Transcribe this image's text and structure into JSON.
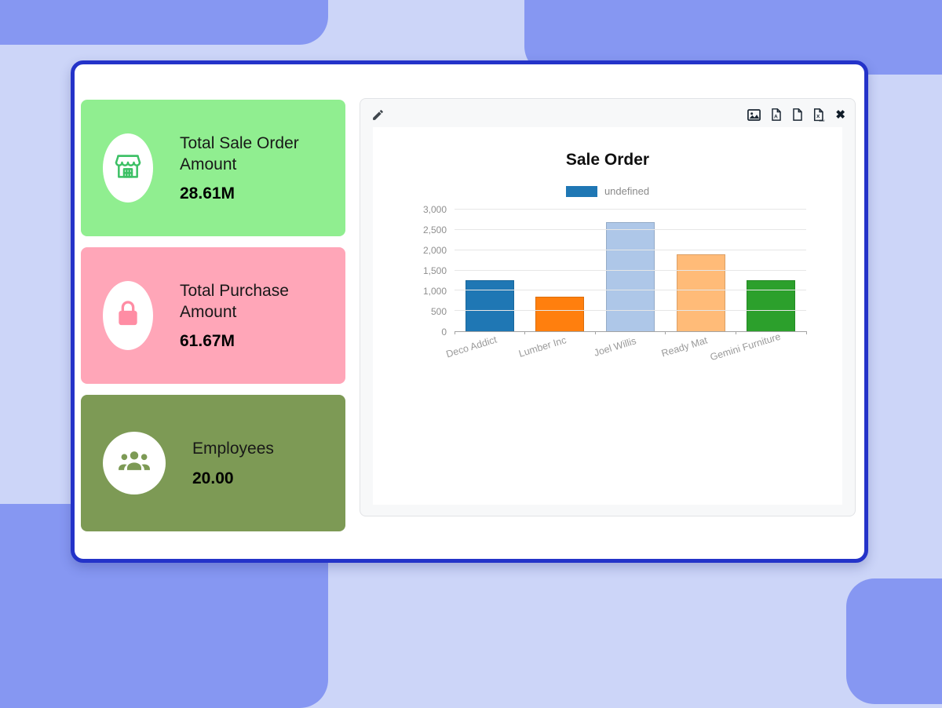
{
  "colors": {
    "background_base": "#ccd5f8",
    "background_accent": "#8697f2",
    "window_border": "#2433c9"
  },
  "kpi_cards": [
    {
      "title": "Total Sale Order Amount",
      "value": "28.61M",
      "bg": "#90ee90",
      "icon": "store-icon",
      "icon_color": "#3cc065"
    },
    {
      "title": "Total Purchase Amount",
      "value": "61.67M",
      "bg": "#ffa6b8",
      "icon": "shopping-bag-icon",
      "icon_color": "#ff8da4"
    },
    {
      "title": "Employees",
      "value": "20.00",
      "bg": "#7d9a55",
      "icon": "employees-icon",
      "icon_color": "#7d9a55"
    }
  ],
  "panel": {
    "toolbar": {
      "icons": [
        "pencil",
        "image",
        "pdf",
        "document",
        "csv",
        "close"
      ]
    }
  },
  "chart_data": {
    "type": "bar",
    "title": "Sale Order",
    "legend": [
      {
        "label": "undefined",
        "color": "#1f77b4"
      }
    ],
    "legend_position": "top",
    "categories": [
      "Deco Addict",
      "Lumber Inc",
      "Joel Willis",
      "Ready Mat",
      "Gemini Furniture"
    ],
    "values": [
      1250,
      850,
      2700,
      1900,
      1250
    ],
    "bar_colors": [
      "#1f77b4",
      "#ff7f0e",
      "#aec7e8",
      "#ffbb78",
      "#2ca02c"
    ],
    "xlabel": "",
    "ylabel": "",
    "ylim": [
      0,
      3000
    ],
    "yticks": [
      "0",
      "500",
      "1,000",
      "1,500",
      "2,000",
      "2,500",
      "3,000"
    ],
    "grid": true
  }
}
